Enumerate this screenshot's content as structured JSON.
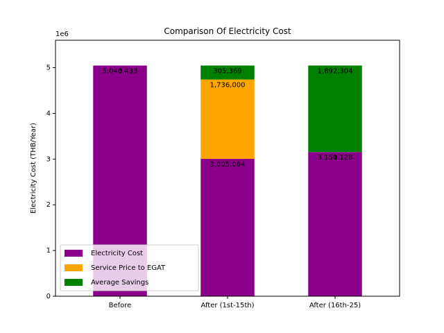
{
  "chart_data": {
    "type": "bar",
    "stacked": true,
    "title": "Comparison Of Electricity Cost",
    "xlabel": "",
    "ylabel": "Electricity Cost (THB/Year)",
    "y_scale_label": "1e6",
    "ylim": [
      0,
      5600000
    ],
    "yticks": [
      0,
      1000000,
      2000000,
      3000000,
      4000000,
      5000000
    ],
    "ytick_labels": [
      "0",
      "1",
      "2",
      "3",
      "4",
      "5"
    ],
    "categories": [
      "Before",
      "After (1st-15th)",
      "After (16th-25)"
    ],
    "series": [
      {
        "name": "Electricity Cost",
        "color": "#8b008b",
        "values": [
          5046433,
          3005064,
          3154128
        ],
        "labels": [
          "5,046,433",
          "3,005,064",
          "3,154,128"
        ]
      },
      {
        "name": "Service Price to EGAT",
        "color": "#ffa500",
        "values": [
          0,
          1736000,
          0
        ],
        "labels": [
          "0",
          "1,736,000",
          "0"
        ]
      },
      {
        "name": "Average Savings",
        "color": "#008000",
        "values": [
          0,
          305369,
          1892304
        ],
        "labels": [
          "0",
          "305,369",
          "1,892,304"
        ]
      }
    ],
    "legend": "lower-left",
    "grid": false
  }
}
